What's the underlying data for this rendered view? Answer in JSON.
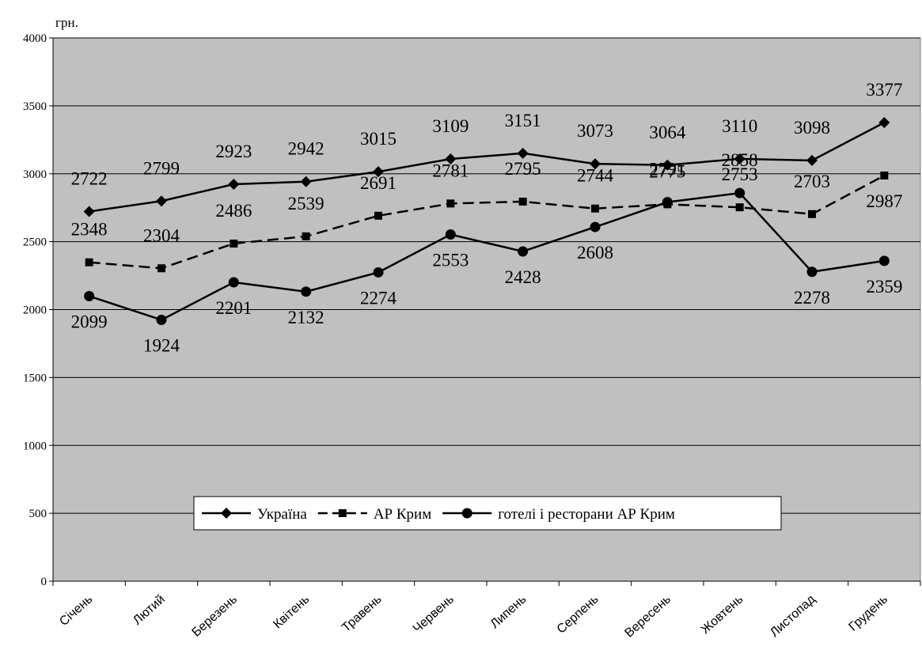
{
  "chart_data": {
    "type": "line",
    "unit_label": "грн.",
    "categories": [
      "Січень",
      "Лютий",
      "Березень",
      "Квітень",
      "Травень",
      "Червень",
      "Липень",
      "Серпень",
      "Вересень",
      "Жовтень",
      "Листопад",
      "Грудень"
    ],
    "ylim": [
      0,
      4000
    ],
    "yticks": [
      0,
      500,
      1000,
      1500,
      2000,
      2500,
      3000,
      3500,
      4000
    ],
    "grid": true,
    "legend_position": "bottom-center",
    "plot_background": "#c0c0c0",
    "series": [
      {
        "name": "Україна",
        "marker": "diamond",
        "dash": "solid",
        "values": [
          2722,
          2799,
          2923,
          2942,
          3015,
          3109,
          3151,
          3073,
          3064,
          3110,
          3098,
          3377
        ]
      },
      {
        "name": "АР Крим",
        "marker": "square",
        "dash": "dashed",
        "values": [
          2348,
          2304,
          2486,
          2539,
          2691,
          2781,
          2795,
          2744,
          2775,
          2753,
          2703,
          2987
        ]
      },
      {
        "name": "готелі і ресторани АР Крим",
        "marker": "circle",
        "dash": "solid",
        "values": [
          2099,
          1924,
          2201,
          2132,
          2274,
          2553,
          2428,
          2608,
          2791,
          2858,
          2278,
          2359
        ]
      }
    ]
  }
}
